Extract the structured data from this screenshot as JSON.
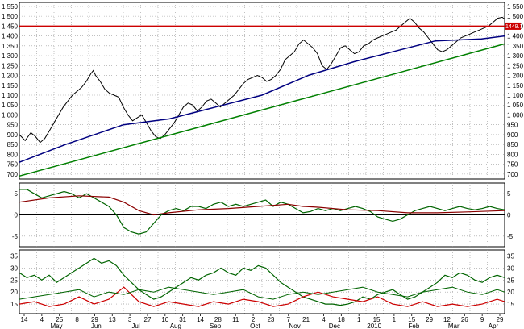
{
  "chart_data": {
    "type": "line",
    "price_panel": {
      "y_ticks": [
        700,
        750,
        800,
        850,
        900,
        950,
        1000,
        1050,
        1100,
        1150,
        1200,
        1250,
        1300,
        1350,
        1400,
        1450,
        1500,
        1550
      ],
      "y_tick_labels": [
        "700",
        "750",
        "800",
        "850",
        "900",
        "950",
        "1 000",
        "1 050",
        "1 100",
        "1 150",
        "1 200",
        "1 250",
        "1 300",
        "1 350",
        "1 400",
        "1 450",
        "1 500",
        "1 550"
      ],
      "ylim": [
        675,
        1570
      ],
      "resistance_level": 1449.7,
      "resistance_label": "1449.7",
      "price": [
        [
          0,
          900
        ],
        [
          5,
          870
        ],
        [
          10,
          910
        ],
        [
          14,
          890
        ],
        [
          18,
          860
        ],
        [
          22,
          880
        ],
        [
          26,
          920
        ],
        [
          30,
          960
        ],
        [
          34,
          1000
        ],
        [
          38,
          1040
        ],
        [
          42,
          1070
        ],
        [
          46,
          1100
        ],
        [
          50,
          1120
        ],
        [
          54,
          1140
        ],
        [
          58,
          1170
        ],
        [
          62,
          1210
        ],
        [
          64,
          1225
        ],
        [
          66,
          1200
        ],
        [
          70,
          1170
        ],
        [
          74,
          1130
        ],
        [
          78,
          1110
        ],
        [
          82,
          1100
        ],
        [
          86,
          1090
        ],
        [
          90,
          1040
        ],
        [
          94,
          1000
        ],
        [
          98,
          970
        ],
        [
          102,
          985
        ],
        [
          106,
          1000
        ],
        [
          110,
          960
        ],
        [
          114,
          920
        ],
        [
          118,
          890
        ],
        [
          122,
          880
        ],
        [
          126,
          900
        ],
        [
          130,
          930
        ],
        [
          134,
          960
        ],
        [
          138,
          1000
        ],
        [
          142,
          1040
        ],
        [
          146,
          1060
        ],
        [
          150,
          1050
        ],
        [
          154,
          1020
        ],
        [
          158,
          1040
        ],
        [
          162,
          1070
        ],
        [
          166,
          1080
        ],
        [
          170,
          1060
        ],
        [
          174,
          1040
        ],
        [
          178,
          1060
        ],
        [
          182,
          1080
        ],
        [
          186,
          1100
        ],
        [
          190,
          1130
        ],
        [
          194,
          1160
        ],
        [
          198,
          1180
        ],
        [
          202,
          1190
        ],
        [
          206,
          1200
        ],
        [
          210,
          1190
        ],
        [
          214,
          1170
        ],
        [
          218,
          1180
        ],
        [
          222,
          1200
        ],
        [
          226,
          1230
        ],
        [
          230,
          1280
        ],
        [
          234,
          1300
        ],
        [
          238,
          1320
        ],
        [
          242,
          1360
        ],
        [
          246,
          1380
        ],
        [
          250,
          1360
        ],
        [
          254,
          1340
        ],
        [
          258,
          1310
        ],
        [
          262,
          1250
        ],
        [
          266,
          1230
        ],
        [
          270,
          1260
        ],
        [
          274,
          1300
        ],
        [
          278,
          1340
        ],
        [
          282,
          1350
        ],
        [
          286,
          1330
        ],
        [
          290,
          1310
        ],
        [
          294,
          1320
        ],
        [
          298,
          1350
        ],
        [
          302,
          1360
        ],
        [
          306,
          1380
        ],
        [
          310,
          1390
        ],
        [
          314,
          1400
        ],
        [
          318,
          1410
        ],
        [
          322,
          1420
        ],
        [
          326,
          1430
        ],
        [
          330,
          1450
        ],
        [
          334,
          1470
        ],
        [
          338,
          1490
        ],
        [
          342,
          1470
        ],
        [
          346,
          1440
        ],
        [
          350,
          1420
        ],
        [
          354,
          1390
        ],
        [
          358,
          1360
        ],
        [
          362,
          1330
        ],
        [
          366,
          1320
        ],
        [
          370,
          1330
        ],
        [
          374,
          1350
        ],
        [
          378,
          1370
        ],
        [
          382,
          1390
        ],
        [
          386,
          1400
        ],
        [
          390,
          1410
        ],
        [
          394,
          1420
        ],
        [
          398,
          1430
        ],
        [
          402,
          1440
        ],
        [
          406,
          1450
        ],
        [
          410,
          1470
        ],
        [
          414,
          1490
        ],
        [
          418,
          1495
        ],
        [
          420,
          1485
        ]
      ],
      "moving_average": [
        [
          0,
          760
        ],
        [
          40,
          850
        ],
        [
          90,
          950
        ],
        [
          130,
          980
        ],
        [
          170,
          1040
        ],
        [
          210,
          1100
        ],
        [
          250,
          1200
        ],
        [
          290,
          1270
        ],
        [
          330,
          1330
        ],
        [
          360,
          1375
        ],
        [
          380,
          1380
        ],
        [
          400,
          1385
        ],
        [
          420,
          1400
        ]
      ],
      "trendline": [
        [
          0,
          690
        ],
        [
          420,
          1360
        ]
      ]
    },
    "momentum_panel": {
      "y_ticks": [
        -5,
        0,
        5
      ],
      "y_tick_labels": [
        "-5",
        "0",
        "5"
      ],
      "ylim": [
        -7.5,
        7.5
      ],
      "fast": [
        [
          0,
          6
        ],
        [
          5,
          6
        ],
        [
          10,
          5
        ],
        [
          15,
          4
        ],
        [
          20,
          4.5
        ],
        [
          25,
          5
        ],
        [
          30,
          5.5
        ],
        [
          35,
          5
        ],
        [
          40,
          4
        ],
        [
          45,
          5
        ],
        [
          50,
          4
        ],
        [
          55,
          3
        ],
        [
          60,
          2
        ],
        [
          65,
          0
        ],
        [
          70,
          -3
        ],
        [
          75,
          -4
        ],
        [
          80,
          -4.5
        ],
        [
          85,
          -4
        ],
        [
          90,
          -2
        ],
        [
          95,
          0
        ],
        [
          100,
          1
        ],
        [
          105,
          1.5
        ],
        [
          110,
          1
        ],
        [
          115,
          2
        ],
        [
          120,
          2
        ],
        [
          125,
          1.5
        ],
        [
          130,
          2.5
        ],
        [
          135,
          3
        ],
        [
          140,
          2
        ],
        [
          145,
          2.5
        ],
        [
          150,
          2
        ],
        [
          155,
          2.5
        ],
        [
          160,
          3
        ],
        [
          165,
          3.5
        ],
        [
          170,
          2
        ],
        [
          175,
          3
        ],
        [
          180,
          2.5
        ],
        [
          185,
          1.5
        ],
        [
          190,
          0.5
        ],
        [
          195,
          0.8
        ],
        [
          200,
          1.5
        ],
        [
          205,
          1
        ],
        [
          210,
          1.5
        ],
        [
          215,
          1
        ],
        [
          220,
          1.5
        ],
        [
          225,
          2
        ],
        [
          230,
          1.5
        ],
        [
          235,
          0.8
        ],
        [
          240,
          -0.5
        ],
        [
          245,
          -1
        ],
        [
          250,
          -1.5
        ],
        [
          255,
          -1
        ],
        [
          260,
          0
        ],
        [
          265,
          1
        ],
        [
          270,
          1.5
        ],
        [
          275,
          2
        ],
        [
          280,
          1.5
        ],
        [
          285,
          1
        ],
        [
          290,
          1.5
        ],
        [
          295,
          2
        ],
        [
          300,
          1.5
        ],
        [
          305,
          1.2
        ],
        [
          310,
          1.5
        ],
        [
          315,
          2
        ],
        [
          320,
          1.5
        ],
        [
          325,
          1.2
        ]
      ],
      "slow": [
        [
          0,
          3
        ],
        [
          20,
          4
        ],
        [
          40,
          4.5
        ],
        [
          60,
          4.2
        ],
        [
          70,
          3
        ],
        [
          80,
          1
        ],
        [
          90,
          0
        ],
        [
          100,
          0.5
        ],
        [
          120,
          1.2
        ],
        [
          140,
          1.5
        ],
        [
          160,
          2
        ],
        [
          180,
          2.5
        ],
        [
          190,
          2
        ],
        [
          200,
          1.8
        ],
        [
          220,
          1.2
        ],
        [
          240,
          1
        ],
        [
          260,
          0.5
        ],
        [
          280,
          0.5
        ],
        [
          300,
          0.7
        ],
        [
          325,
          1
        ]
      ]
    },
    "adx_panel": {
      "y_ticks": [
        15,
        20,
        25,
        30,
        35
      ],
      "y_tick_labels": [
        "15",
        "20",
        "25",
        "30",
        "35"
      ],
      "ylim": [
        11,
        37.5
      ],
      "adx": [
        [
          0,
          28
        ],
        [
          5,
          26
        ],
        [
          10,
          27
        ],
        [
          15,
          25
        ],
        [
          20,
          27
        ],
        [
          25,
          24
        ],
        [
          30,
          26
        ],
        [
          35,
          28
        ],
        [
          40,
          30
        ],
        [
          45,
          32
        ],
        [
          50,
          34
        ],
        [
          55,
          32
        ],
        [
          60,
          33
        ],
        [
          65,
          31
        ],
        [
          70,
          27
        ],
        [
          75,
          24
        ],
        [
          80,
          21
        ],
        [
          85,
          19
        ],
        [
          90,
          17
        ],
        [
          95,
          18
        ],
        [
          100,
          20
        ],
        [
          105,
          22
        ],
        [
          110,
          24
        ],
        [
          115,
          26
        ],
        [
          120,
          25
        ],
        [
          125,
          27
        ],
        [
          130,
          28
        ],
        [
          135,
          30
        ],
        [
          140,
          28
        ],
        [
          145,
          27
        ],
        [
          150,
          30
        ],
        [
          155,
          29
        ],
        [
          160,
          31
        ],
        [
          165,
          30
        ],
        [
          170,
          27
        ],
        [
          175,
          24
        ],
        [
          180,
          22
        ],
        [
          185,
          20
        ],
        [
          190,
          18
        ],
        [
          195,
          17
        ],
        [
          200,
          16
        ],
        [
          205,
          15
        ],
        [
          210,
          15
        ],
        [
          215,
          14.5
        ],
        [
          220,
          15
        ],
        [
          225,
          16
        ],
        [
          230,
          18
        ],
        [
          235,
          17
        ],
        [
          240,
          19
        ],
        [
          245,
          20
        ],
        [
          250,
          21
        ],
        [
          255,
          19
        ],
        [
          260,
          17
        ],
        [
          265,
          18
        ],
        [
          270,
          20
        ],
        [
          275,
          22
        ],
        [
          280,
          24
        ],
        [
          285,
          27
        ],
        [
          290,
          26
        ],
        [
          295,
          28
        ],
        [
          300,
          27
        ],
        [
          305,
          25
        ],
        [
          310,
          24
        ],
        [
          315,
          26
        ],
        [
          320,
          27
        ],
        [
          325,
          26
        ]
      ],
      "di_red": [
        [
          0,
          15
        ],
        [
          10,
          16
        ],
        [
          20,
          14
        ],
        [
          30,
          15
        ],
        [
          40,
          18
        ],
        [
          50,
          15
        ],
        [
          60,
          17
        ],
        [
          70,
          22
        ],
        [
          80,
          16
        ],
        [
          90,
          14
        ],
        [
          100,
          16
        ],
        [
          110,
          15
        ],
        [
          120,
          14
        ],
        [
          130,
          16
        ],
        [
          140,
          15
        ],
        [
          150,
          17
        ],
        [
          160,
          16
        ],
        [
          170,
          14
        ],
        [
          180,
          15
        ],
        [
          190,
          18
        ],
        [
          200,
          20
        ],
        [
          210,
          18
        ],
        [
          220,
          17
        ],
        [
          230,
          16
        ],
        [
          240,
          18
        ],
        [
          250,
          15
        ],
        [
          260,
          14
        ],
        [
          270,
          16
        ],
        [
          280,
          14
        ],
        [
          290,
          15
        ],
        [
          300,
          14
        ],
        [
          310,
          15
        ],
        [
          320,
          17
        ],
        [
          325,
          16
        ]
      ],
      "di_green": [
        [
          0,
          17
        ],
        [
          10,
          18
        ],
        [
          20,
          19
        ],
        [
          30,
          20
        ],
        [
          40,
          21
        ],
        [
          50,
          18
        ],
        [
          60,
          20
        ],
        [
          70,
          19
        ],
        [
          80,
          21
        ],
        [
          90,
          20
        ],
        [
          100,
          22
        ],
        [
          110,
          21
        ],
        [
          120,
          20
        ],
        [
          130,
          19
        ],
        [
          140,
          20
        ],
        [
          150,
          21
        ],
        [
          160,
          18
        ],
        [
          170,
          17
        ],
        [
          180,
          19
        ],
        [
          190,
          20
        ],
        [
          200,
          19
        ],
        [
          210,
          20
        ],
        [
          220,
          21
        ],
        [
          230,
          22
        ],
        [
          240,
          20
        ],
        [
          250,
          19
        ],
        [
          260,
          18
        ],
        [
          270,
          20
        ],
        [
          280,
          21
        ],
        [
          290,
          22
        ],
        [
          300,
          20
        ],
        [
          310,
          19
        ],
        [
          320,
          21
        ],
        [
          325,
          20
        ]
      ]
    },
    "x_date_labels": [
      "14",
      "4",
      "25",
      "8",
      "29",
      "13",
      "3",
      "27",
      "10",
      "31",
      "14",
      "28",
      "11",
      "2",
      "23",
      "7",
      "21",
      "4",
      "18",
      "1",
      "15",
      "1",
      "15",
      "29",
      "12",
      "26",
      "9",
      "29"
    ],
    "x_month_labels": [
      "May",
      "Jun",
      "Jul",
      "Aug",
      "Sep",
      "Oct",
      "Nov",
      "Dec",
      "2010",
      "Feb",
      "Mar",
      "Apr"
    ]
  }
}
